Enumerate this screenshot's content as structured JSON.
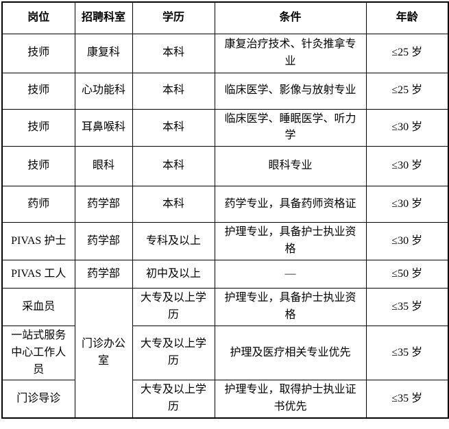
{
  "table": {
    "headers": {
      "position": "岗位",
      "department": "招聘科室",
      "education": "学历",
      "condition": "条件",
      "age": "年龄"
    },
    "rows": [
      {
        "post": "技师",
        "dept": "康复科",
        "edu": "本科",
        "cond": "康复治疗技术、针灸推拿专业",
        "age": "≤25 岁"
      },
      {
        "post": "技师",
        "dept": "心功能科",
        "edu": "本科",
        "cond": "临床医学、影像与放射专业",
        "age": "≤25 岁"
      },
      {
        "post": "技师",
        "dept": "耳鼻喉科",
        "edu": "本科",
        "cond": "临床医学、睡眠医学、听力学",
        "age": "≤30 岁"
      },
      {
        "post": "技师",
        "dept": "眼科",
        "edu": "本科",
        "cond": "眼科专业",
        "age": "≤30 岁"
      },
      {
        "post": "药师",
        "dept": "药学部",
        "edu": "本科",
        "cond": "药学专业，具备药师资格证",
        "age": "≤30 岁"
      },
      {
        "post": "PIVAS 护士",
        "dept": "药学部",
        "edu": "专科及以上",
        "cond": "护理专业，具备护士执业资格",
        "age": "≤30 岁"
      },
      {
        "post": "PIVAS 工人",
        "dept": "药学部",
        "edu": "初中及以上",
        "cond": "—",
        "age": "≤50 岁"
      },
      {
        "post": "采血员",
        "dept": "门诊办公室",
        "edu": "大专及以上学历",
        "cond": "护理专业，具备护士执业资格",
        "age": "≤35 岁"
      },
      {
        "post": "一站式服务中心工作人员",
        "edu": "大专及以上学历",
        "cond": "护理及医疗相关专业优先",
        "age": "≤35 岁"
      },
      {
        "post": "门诊导诊",
        "edu": "大专及以上学历",
        "cond": "护理专业，取得护士执业证书优先",
        "age": "≤35 岁"
      }
    ]
  }
}
